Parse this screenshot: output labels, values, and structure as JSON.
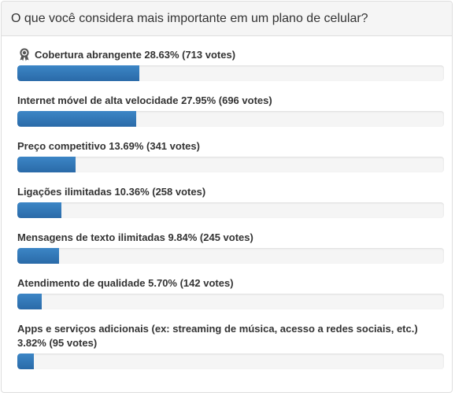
{
  "poll": {
    "question": "O que você considera mais importante em um plano de celular?",
    "bar_color": "#337ab7",
    "options": [
      {
        "text": "Cobertura abrangente 28.63% (713 votes)",
        "percent": 28.63,
        "winner": true,
        "icon": "award-ribbon-icon"
      },
      {
        "text": "Internet móvel de alta velocidade 27.95% (696 votes)",
        "percent": 27.95
      },
      {
        "text": "Preço competitivo 13.69% (341 votes)",
        "percent": 13.69
      },
      {
        "text": "Ligações ilimitadas 10.36% (258 votes)",
        "percent": 10.36
      },
      {
        "text": "Mensagens de texto ilimitadas 9.84% (245 votes)",
        "percent": 9.84
      },
      {
        "text": "Atendimento de qualidade 5.70% (142 votes)",
        "percent": 5.7
      },
      {
        "text": "Apps e serviços adicionais (ex: streaming de música, acesso a redes sociais, etc.) 3.82% (95 votes)",
        "percent": 3.82
      }
    ]
  }
}
